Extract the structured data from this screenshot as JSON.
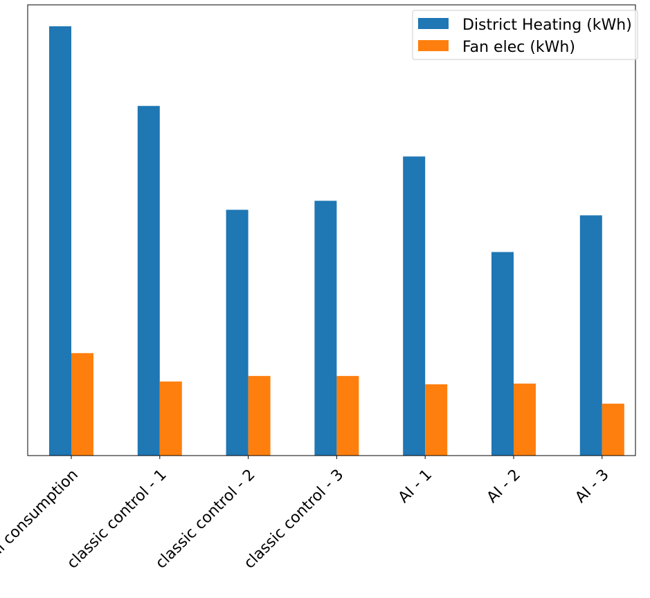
{
  "chart_data": {
    "type": "bar",
    "title": "",
    "xlabel": "",
    "ylabel": "",
    "categories": [
      "historical consumption",
      "classic control - 1",
      "classic control - 2",
      "classic control - 3",
      "AI - 1",
      "AI - 2",
      "AI - 3"
    ],
    "series": [
      {
        "name": "District Heating (kWh)",
        "color": "#1f77b4",
        "values": [
          620,
          505,
          355,
          368,
          432,
          294,
          347
        ]
      },
      {
        "name": "Fan elec (kWh)",
        "color": "#ff7f0e",
        "values": [
          148,
          107,
          115,
          115,
          103,
          104,
          75
        ]
      }
    ],
    "ylim": [
      0,
      651
    ],
    "y_ticks_shown": false,
    "grid": false,
    "legend_position": "top-right"
  }
}
